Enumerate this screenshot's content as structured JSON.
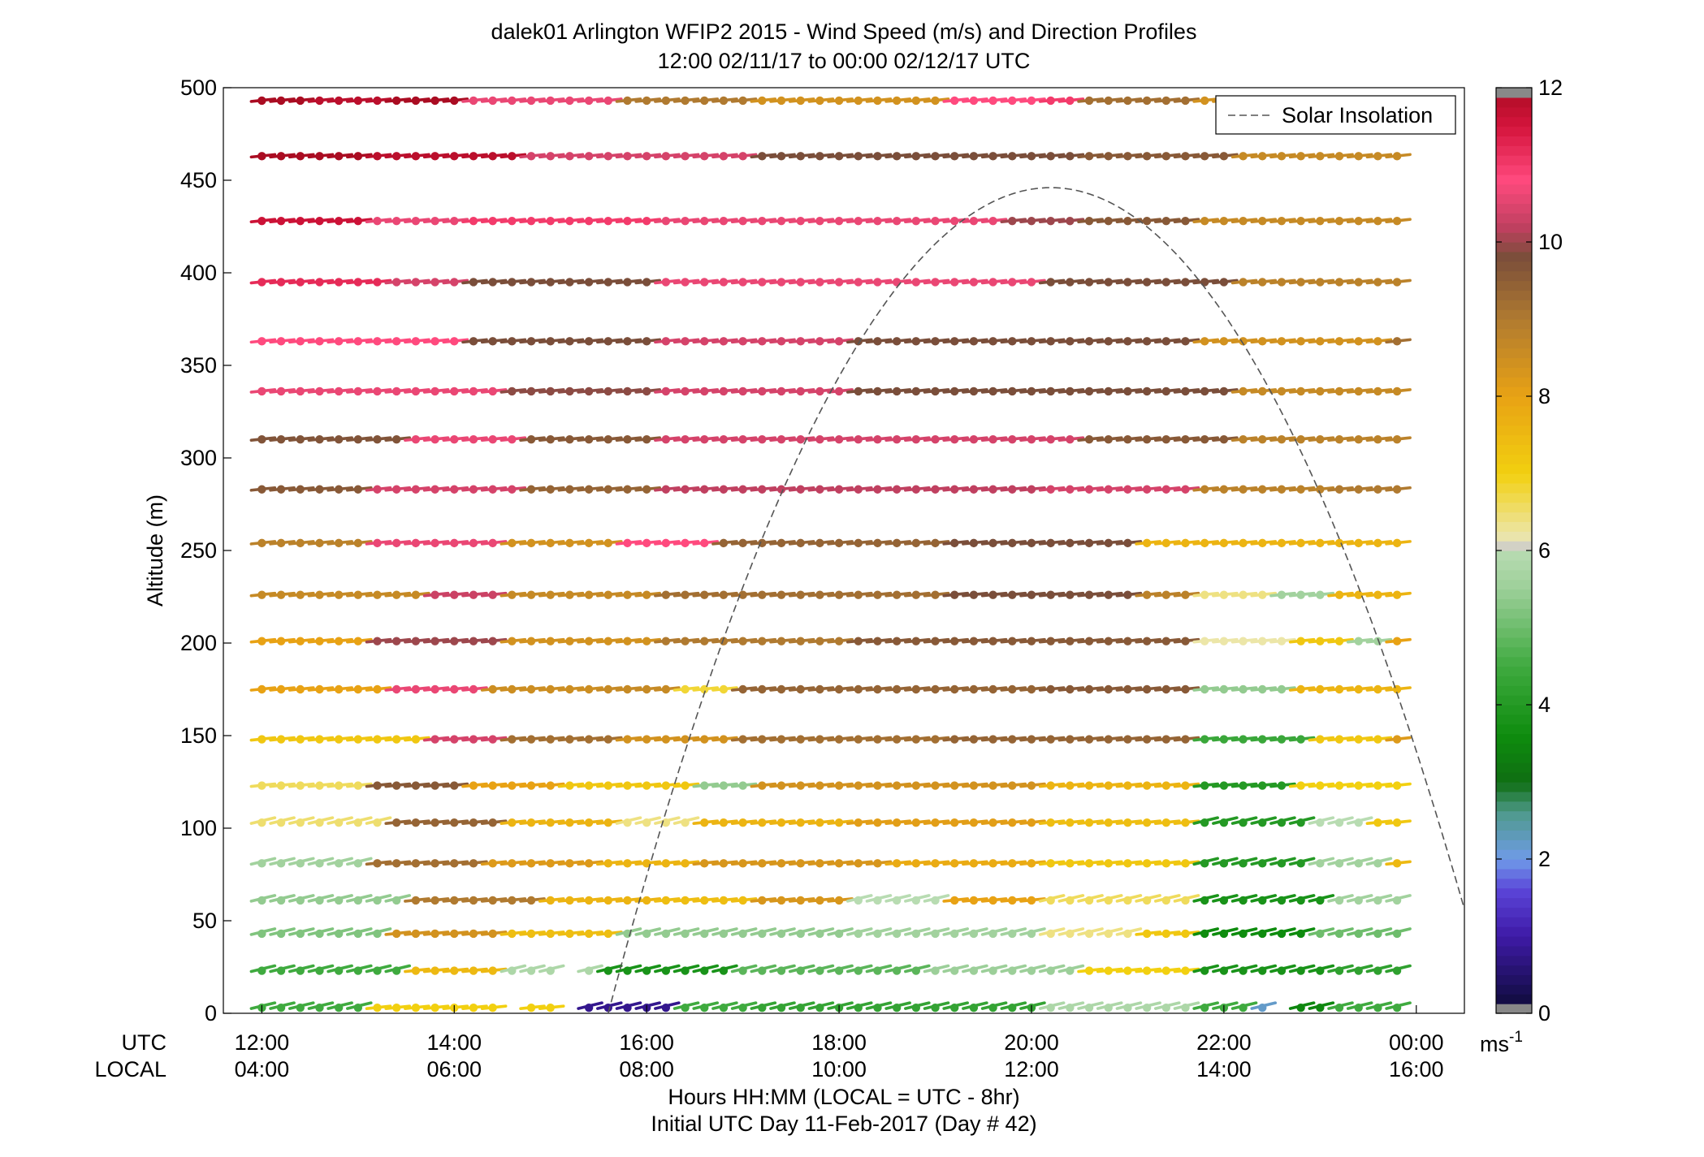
{
  "chart_data": {
    "type": "wind-barb-profile",
    "title": "dalek01 Arlington WFIP2 2015 - Wind Speed (m/s) and Direction Profiles",
    "subtitle": "12:00 02/11/17 to 00:00 02/12/17  UTC",
    "ylabel": "Altitude (m)",
    "xlabel": "Hours HH:MM  (LOCAL = UTC - 8hr)",
    "xlabel2": "Initial UTC Day 11-Feb-2017 (Day # 42)",
    "ylim": [
      0,
      500
    ],
    "yticks": [
      0,
      50,
      100,
      150,
      200,
      250,
      300,
      350,
      400,
      450,
      500
    ],
    "xlim_hours": [
      11.6,
      24.5
    ],
    "utc_row_label": "UTC",
    "local_row_label": "LOCAL",
    "xticks": [
      {
        "hour": 12,
        "utc": "12:00",
        "local": "04:00"
      },
      {
        "hour": 14,
        "utc": "14:00",
        "local": "06:00"
      },
      {
        "hour": 16,
        "utc": "16:00",
        "local": "08:00"
      },
      {
        "hour": 18,
        "utc": "18:00",
        "local": "10:00"
      },
      {
        "hour": 20,
        "utc": "20:00",
        "local": "12:00"
      },
      {
        "hour": 22,
        "utc": "22:00",
        "local": "14:00"
      },
      {
        "hour": 24,
        "utc": "00:00",
        "local": "16:00"
      }
    ],
    "legend": {
      "label": "Solar Insolation",
      "position": "top-right"
    },
    "solar_insolation": {
      "start_hour": 15.6,
      "peak_hour": 20.2,
      "peak_altitude": 446,
      "end_hour": 24.5,
      "end_altitude": 60
    },
    "colorbar": {
      "min": 0,
      "max": 12,
      "ticks": [
        0,
        2,
        4,
        6,
        8,
        10,
        12
      ],
      "unit": "ms",
      "unit_exp": "-1"
    },
    "profile_altitudes": [
      3,
      23,
      43,
      61,
      81,
      103,
      123,
      148,
      175,
      201,
      226,
      254,
      283,
      310,
      336,
      363,
      395,
      428,
      463,
      493
    ],
    "time_step_hours": 0.2,
    "time_start_hour": 12.0,
    "time_end_hour": 23.95,
    "gaps": [
      {
        "alt": 3,
        "from": 14.4,
        "to": 14.6
      },
      {
        "alt": 3,
        "from": 15.15,
        "to": 15.35
      },
      {
        "alt": 3,
        "from": 22.5,
        "to": 22.75
      },
      {
        "alt": 3,
        "from": 23.6,
        "to": 23.75
      },
      {
        "alt": 23,
        "from": 14.2,
        "to": 14.35
      },
      {
        "alt": 23,
        "from": 15.0,
        "to": 15.2
      }
    ],
    "speed_segments": [
      {
        "alt": 3,
        "speeds": [
          [
            12.0,
            4.5
          ],
          [
            13.1,
            7.0
          ],
          [
            14.6,
            7.0
          ],
          [
            15.35,
            0.8
          ],
          [
            16.2,
            4.5
          ],
          [
            17.0,
            4.3
          ],
          [
            20.0,
            5.8
          ],
          [
            21.6,
            4.5
          ],
          [
            22.3,
            2.2
          ],
          [
            22.75,
            3.5
          ],
          [
            23.1,
            4.5
          ]
        ]
      },
      {
        "alt": 23,
        "speeds": [
          [
            12.0,
            4.5
          ],
          [
            13.4,
            7.5
          ],
          [
            14.4,
            7.4
          ],
          [
            14.5,
            5.8
          ],
          [
            15.5,
            3.8
          ],
          [
            16.8,
            4.8
          ],
          [
            18.8,
            5.5
          ],
          [
            20.4,
            7.0
          ],
          [
            21.6,
            3.8
          ],
          [
            23.0,
            4.2
          ]
        ]
      },
      {
        "alt": 43,
        "speeds": [
          [
            12.0,
            5.2
          ],
          [
            13.3,
            8.4
          ],
          [
            14.4,
            7.4
          ],
          [
            15.6,
            5.4
          ],
          [
            18.0,
            5.6
          ],
          [
            20.0,
            6.4
          ],
          [
            21.0,
            7.2
          ],
          [
            21.6,
            3.6
          ],
          [
            22.8,
            5.0
          ]
        ]
      },
      {
        "alt": 61,
        "speeds": [
          [
            12.0,
            5.4
          ],
          [
            13.5,
            9.0
          ],
          [
            14.8,
            7.6
          ],
          [
            16.0,
            7.4
          ],
          [
            17.0,
            8.3
          ],
          [
            18.0,
            6.0
          ],
          [
            19.0,
            8.0
          ],
          [
            20.0,
            6.6
          ],
          [
            21.6,
            3.8
          ],
          [
            23.0,
            5.6
          ]
        ]
      },
      {
        "alt": 81,
        "speeds": [
          [
            12.0,
            5.6
          ],
          [
            13.0,
            9.2
          ],
          [
            14.3,
            8.2
          ],
          [
            15.5,
            7.6
          ],
          [
            16.5,
            8.3
          ],
          [
            18.5,
            7.8
          ],
          [
            20.0,
            7.2
          ],
          [
            21.6,
            4.0
          ],
          [
            22.8,
            5.6
          ],
          [
            23.6,
            7.5
          ]
        ]
      },
      {
        "alt": 103,
        "speeds": [
          [
            12.0,
            6.5
          ],
          [
            13.2,
            9.4
          ],
          [
            14.5,
            7.6
          ],
          [
            15.7,
            6.4
          ],
          [
            16.5,
            7.6
          ],
          [
            18.0,
            8.1
          ],
          [
            20.0,
            7.4
          ],
          [
            21.6,
            4.0
          ],
          [
            22.8,
            6.0
          ],
          [
            23.4,
            7.2
          ]
        ]
      },
      {
        "alt": 123,
        "speeds": [
          [
            12.0,
            6.6
          ],
          [
            13.0,
            9.6
          ],
          [
            14.0,
            8.0
          ],
          [
            15.0,
            7.2
          ],
          [
            16.5,
            5.4
          ],
          [
            17.0,
            8.4
          ],
          [
            20.0,
            7.6
          ],
          [
            21.6,
            4.0
          ],
          [
            22.6,
            7.0
          ]
        ]
      },
      {
        "alt": 148,
        "speeds": [
          [
            12.0,
            7.2
          ],
          [
            13.6,
            10.4
          ],
          [
            14.4,
            9.2
          ],
          [
            15.6,
            8.4
          ],
          [
            16.8,
            9.2
          ],
          [
            19.0,
            9.4
          ],
          [
            21.6,
            4.4
          ],
          [
            22.8,
            7.2
          ],
          [
            23.6,
            8.2
          ]
        ]
      },
      {
        "alt": 175,
        "speeds": [
          [
            12.0,
            8.0
          ],
          [
            13.2,
            10.6
          ],
          [
            14.2,
            8.5
          ],
          [
            15.4,
            8.6
          ],
          [
            16.2,
            6.8
          ],
          [
            16.8,
            9.4
          ],
          [
            20.0,
            9.6
          ],
          [
            21.6,
            5.4
          ],
          [
            22.6,
            7.6
          ]
        ]
      },
      {
        "alt": 201,
        "speeds": [
          [
            12.0,
            8.0
          ],
          [
            13.0,
            10.0
          ],
          [
            14.5,
            8.4
          ],
          [
            16.0,
            9.0
          ],
          [
            18.0,
            9.6
          ],
          [
            20.0,
            9.6
          ],
          [
            21.6,
            6.2
          ],
          [
            22.6,
            7.2
          ],
          [
            23.2,
            5.6
          ],
          [
            23.6,
            8.0
          ]
        ]
      },
      {
        "alt": 226,
        "speeds": [
          [
            12.0,
            8.6
          ],
          [
            13.6,
            10.3
          ],
          [
            14.4,
            8.6
          ],
          [
            16.0,
            9.2
          ],
          [
            19.0,
            9.8
          ],
          [
            21.0,
            8.8
          ],
          [
            21.6,
            6.4
          ],
          [
            22.4,
            5.6
          ],
          [
            23.0,
            7.6
          ]
        ]
      },
      {
        "alt": 254,
        "speeds": [
          [
            12.0,
            8.8
          ],
          [
            13.0,
            10.6
          ],
          [
            14.4,
            8.4
          ],
          [
            15.6,
            10.8
          ],
          [
            16.6,
            9.4
          ],
          [
            19.0,
            9.8
          ],
          [
            21.0,
            7.6
          ]
        ]
      },
      {
        "alt": 283,
        "speeds": [
          [
            12.0,
            9.6
          ],
          [
            13.0,
            10.4
          ],
          [
            14.6,
            9.4
          ],
          [
            16.0,
            10.2
          ],
          [
            20.0,
            10.4
          ],
          [
            21.6,
            8.8
          ],
          [
            23.0,
            9.0
          ]
        ]
      },
      {
        "alt": 310,
        "speeds": [
          [
            12.0,
            9.7
          ],
          [
            13.4,
            10.6
          ],
          [
            14.6,
            9.6
          ],
          [
            16.0,
            10.4
          ],
          [
            20.4,
            9.6
          ],
          [
            22.0,
            8.8
          ]
        ]
      },
      {
        "alt": 336,
        "speeds": [
          [
            12.0,
            10.6
          ],
          [
            14.4,
            9.9
          ],
          [
            16.0,
            10.4
          ],
          [
            18.0,
            9.8
          ],
          [
            20.4,
            9.8
          ],
          [
            22.0,
            8.6
          ]
        ]
      },
      {
        "alt": 363,
        "speeds": [
          [
            12.0,
            10.8
          ],
          [
            14.0,
            9.8
          ],
          [
            16.0,
            10.4
          ],
          [
            18.0,
            9.8
          ],
          [
            21.6,
            8.4
          ],
          [
            23.6,
            9.2
          ]
        ]
      },
      {
        "alt": 395,
        "speeds": [
          [
            12.0,
            11.2
          ],
          [
            13.2,
            10.4
          ],
          [
            14.0,
            9.8
          ],
          [
            16.0,
            10.6
          ],
          [
            20.0,
            9.8
          ],
          [
            22.0,
            8.8
          ]
        ]
      },
      {
        "alt": 428,
        "speeds": [
          [
            12.0,
            11.6
          ],
          [
            13.0,
            10.6
          ],
          [
            14.0,
            11.0
          ],
          [
            16.0,
            10.6
          ],
          [
            19.6,
            10.0
          ],
          [
            20.4,
            9.6
          ],
          [
            21.6,
            8.6
          ]
        ]
      },
      {
        "alt": 463,
        "speeds": [
          [
            12.0,
            12.0
          ],
          [
            13.0,
            11.8
          ],
          [
            14.6,
            10.4
          ],
          [
            17.0,
            9.8
          ],
          [
            20.4,
            9.6
          ],
          [
            22.0,
            8.6
          ]
        ]
      },
      {
        "alt": 493,
        "speeds": [
          [
            12.0,
            12.0
          ],
          [
            12.4,
            11.8
          ],
          [
            13.2,
            12.0
          ],
          [
            14.0,
            10.6
          ],
          [
            15.6,
            9.0
          ],
          [
            17.0,
            8.4
          ],
          [
            19.0,
            10.8
          ],
          [
            20.0,
            11.0
          ],
          [
            20.4,
            9.2
          ],
          [
            21.6,
            8.4
          ]
        ]
      }
    ]
  }
}
